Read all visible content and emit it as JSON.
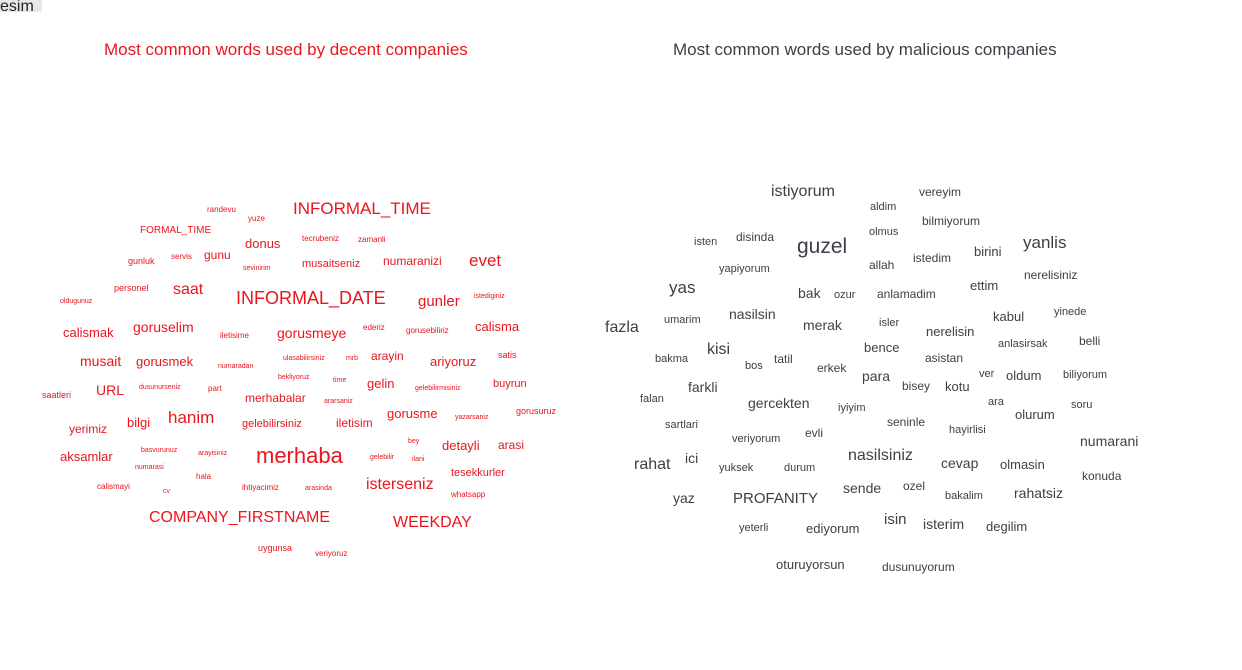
{
  "tab_label": "esim",
  "colors": {
    "decent": "#e8161d",
    "malicious": "#3d4048"
  },
  "chart_data": [
    {
      "type": "wordcloud",
      "title": "Most common words used by decent companies",
      "color": "#e8161d",
      "words": [
        "randevu",
        "yuze",
        "INFORMAL_TIME",
        "FORMAL_TIME",
        "tecrubeniz",
        "zamanli",
        "donus",
        "gunluk",
        "servis",
        "gunu",
        "sevinirim",
        "musaitseniz",
        "numaranizi",
        "evet",
        "personel",
        "saat",
        "INFORMAL_DATE",
        "gunler",
        "istediginiz",
        "oldugunuz",
        "calismak",
        "goruselim",
        "iletisime",
        "gorusmeye",
        "ederiz",
        "gorusebiliriz",
        "calisma",
        "musait",
        "gorusmek",
        "numaradan",
        "ulasabilirsiniz",
        "mrb",
        "arayin",
        "ariyoruz",
        "satis",
        "bekliyoruz",
        "time",
        "gelin",
        "gelebilirmisiniz",
        "buyrun",
        "saatleri",
        "URL",
        "dusunurseniz",
        "part",
        "merhabalar",
        "ararsaniz",
        "yerimiz",
        "bilgi",
        "hanim",
        "gelebilirsiniz",
        "iletisim",
        "gorusme",
        "yazarsaniz",
        "gorusuruz",
        "bey",
        "aksamlar",
        "basvurunuz",
        "arayisiniz",
        "merhaba",
        "gelebilir",
        "ilani",
        "detayli",
        "arasi",
        "numarasi",
        "hala",
        "tesekkurler",
        "calismayi",
        "cv",
        "ihtiyacimiz",
        "arasinda",
        "isterseniz",
        "whatsapp",
        "COMPANY_FIRSTNAME",
        "WEEKDAY",
        "uygunsa",
        "veriyoruz"
      ]
    },
    {
      "type": "wordcloud",
      "title": "Most common words used by malicious companies",
      "color": "#3d4048",
      "words": [
        "istiyorum",
        "vereyim",
        "aldim",
        "bilmiyorum",
        "olmus",
        "isten",
        "disinda",
        "guzel",
        "birini",
        "yanlis",
        "istedim",
        "allah",
        "yapiyorum",
        "nerelisiniz",
        "yas",
        "ettim",
        "bak",
        "ozur",
        "anlamadim",
        "yinede",
        "kabul",
        "umarim",
        "nasilsin",
        "merak",
        "isler",
        "fazla",
        "nerelisin",
        "anlasirsak",
        "belli",
        "bence",
        "kisi",
        "bakma",
        "tatil",
        "asistan",
        "bos",
        "erkek",
        "para",
        "ver",
        "oldum",
        "biliyorum",
        "bisey",
        "kotu",
        "farkli",
        "ara",
        "falan",
        "soru",
        "gercekten",
        "iyiyim",
        "olurum",
        "seninle",
        "sartlari",
        "hayirlisi",
        "evli",
        "veriyorum",
        "numarani",
        "nasilsiniz",
        "ici",
        "rahat",
        "cevap",
        "olmasin",
        "durum",
        "yuksek",
        "konuda",
        "sende",
        "ozel",
        "rahatsiz",
        "yaz",
        "PROFANITY",
        "bakalim",
        "isin",
        "isterim",
        "yeterli",
        "ediyorum",
        "degilim",
        "oturuyorsun",
        "dusunuyorum"
      ]
    }
  ]
}
